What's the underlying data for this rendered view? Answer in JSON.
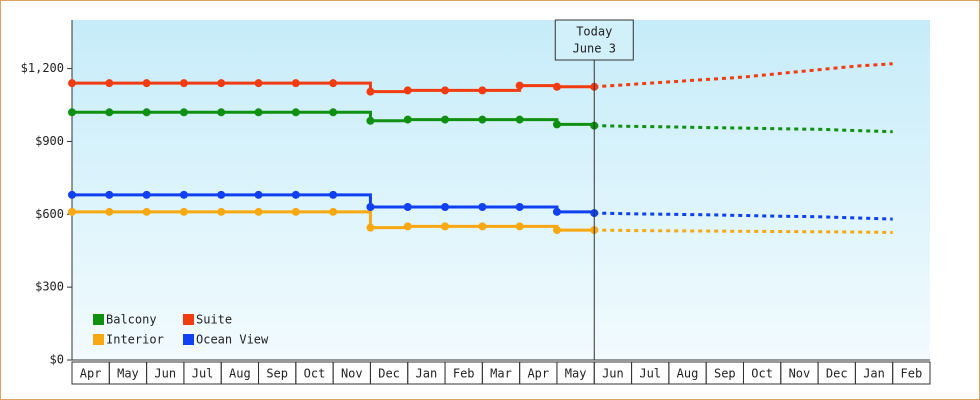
{
  "chart_data": {
    "type": "step-line",
    "categories": [
      "Apr",
      "May",
      "Jun",
      "Jul",
      "Aug",
      "Sep",
      "Oct",
      "Nov",
      "Dec",
      "Jan",
      "Feb",
      "Mar",
      "Apr",
      "May",
      "Jun",
      "Jul",
      "Aug",
      "Sep",
      "Oct",
      "Nov",
      "Dec",
      "Jan",
      "Feb"
    ],
    "series": [
      {
        "name": "Balcony",
        "color": "#109010",
        "values": [
          1020,
          1020,
          1020,
          1020,
          1020,
          1020,
          1020,
          1020,
          985,
          990,
          990,
          990,
          990,
          970,
          965,
          null,
          null,
          null,
          null,
          null,
          null,
          null,
          null
        ],
        "projected": [
          null,
          null,
          null,
          null,
          null,
          null,
          null,
          null,
          null,
          null,
          null,
          null,
          null,
          null,
          965,
          962,
          960,
          957,
          955,
          952,
          950,
          945,
          940
        ]
      },
      {
        "name": "Suite",
        "color": "#f03c10",
        "values": [
          1140,
          1140,
          1140,
          1140,
          1140,
          1140,
          1140,
          1140,
          1105,
          1110,
          1110,
          1110,
          1130,
          1125,
          1125,
          null,
          null,
          null,
          null,
          null,
          null,
          null,
          null
        ],
        "projected": [
          null,
          null,
          null,
          null,
          null,
          null,
          null,
          null,
          null,
          null,
          null,
          null,
          null,
          null,
          1125,
          1135,
          1145,
          1155,
          1165,
          1180,
          1195,
          1210,
          1220
        ]
      },
      {
        "name": "Interior",
        "color": "#f8a810",
        "values": [
          610,
          610,
          610,
          610,
          610,
          610,
          610,
          610,
          545,
          550,
          550,
          550,
          550,
          535,
          535,
          null,
          null,
          null,
          null,
          null,
          null,
          null,
          null
        ],
        "projected": [
          null,
          null,
          null,
          null,
          null,
          null,
          null,
          null,
          null,
          null,
          null,
          null,
          null,
          null,
          535,
          533,
          532,
          531,
          530,
          529,
          528,
          527,
          525
        ]
      },
      {
        "name": "Ocean View",
        "color": "#1040f0",
        "values": [
          680,
          680,
          680,
          680,
          680,
          680,
          680,
          680,
          630,
          630,
          630,
          630,
          630,
          610,
          605,
          null,
          null,
          null,
          null,
          null,
          null,
          null,
          null
        ],
        "projected": [
          null,
          null,
          null,
          null,
          null,
          null,
          null,
          null,
          null,
          null,
          null,
          null,
          null,
          null,
          605,
          602,
          600,
          598,
          595,
          592,
          590,
          585,
          580
        ]
      }
    ],
    "ylim": [
      0,
      1400
    ],
    "yticks": [
      {
        "value": 0,
        "label": "$0"
      },
      {
        "value": 300,
        "label": "$300"
      },
      {
        "value": 600,
        "label": "$600"
      },
      {
        "value": 900,
        "label": "$900"
      },
      {
        "value": 1200,
        "label": "$1,200"
      }
    ],
    "annotation": [
      "Today",
      "June 3"
    ]
  }
}
